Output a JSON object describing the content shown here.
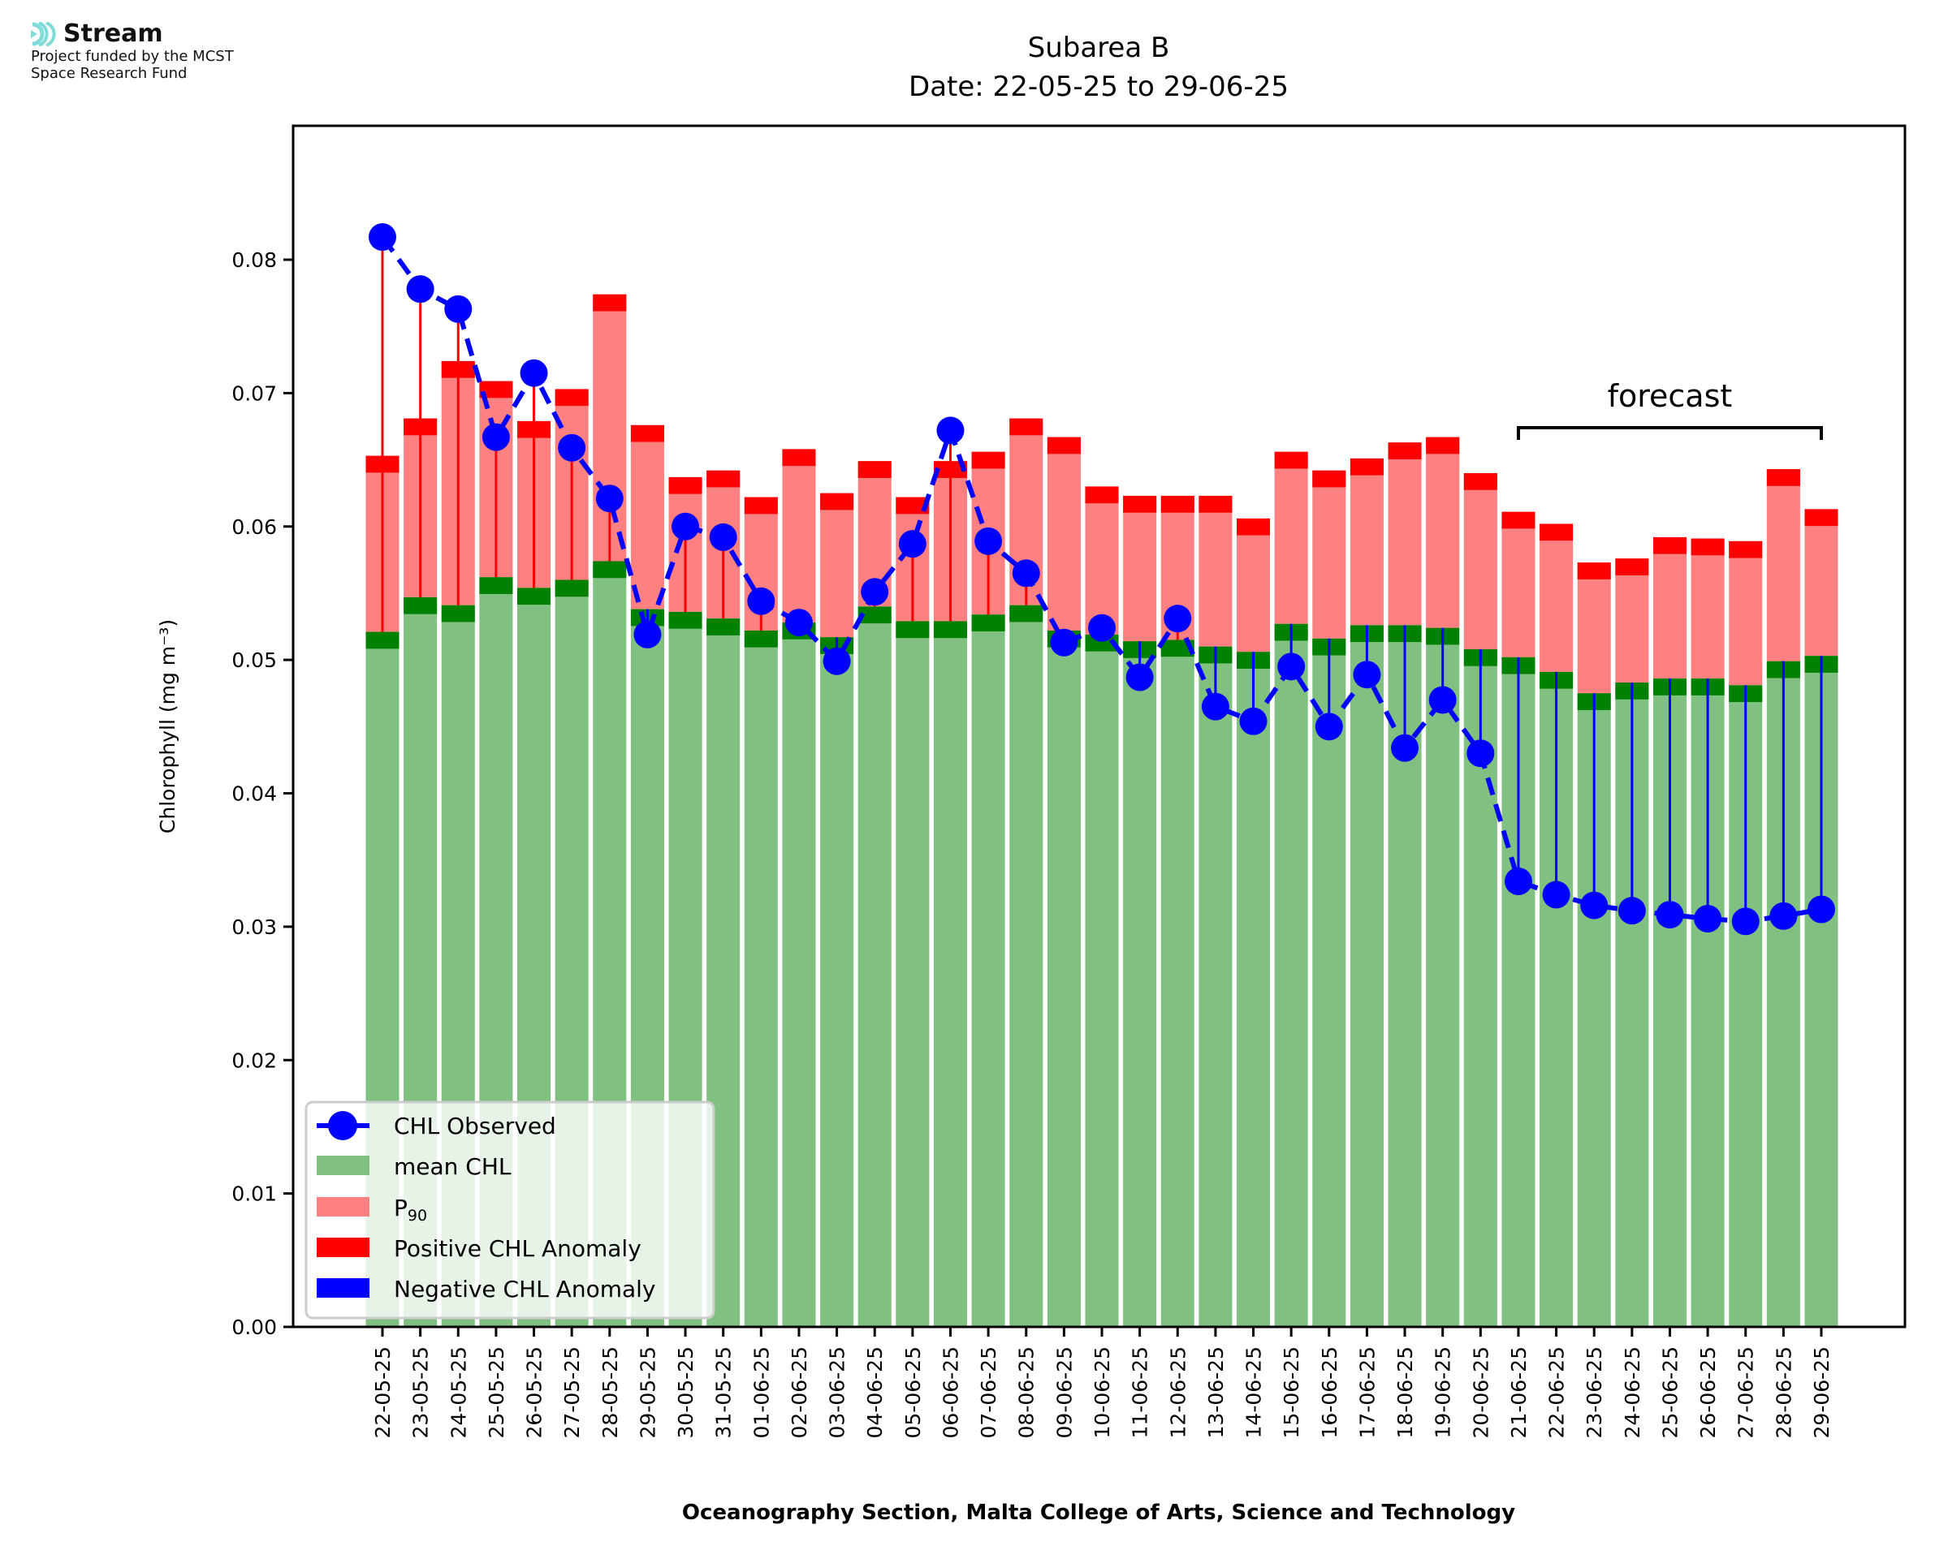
{
  "logo": {
    "name": "Stream",
    "line1": "Project funded by the MCST",
    "line2": "Space Research Fund",
    "color": "#7fdcd9"
  },
  "chart_data": {
    "type": "bar",
    "title": "Subarea B",
    "subtitle": "Date: 22-05-25 to 29-06-25",
    "xlabel": "Oceanography Section, Malta College of Arts, Science and Technology",
    "ylabel": "Chlorophyll (mg m⁻³)",
    "ylim": [
      0,
      0.09
    ],
    "yticks": [
      "0.00",
      "0.01",
      "0.02",
      "0.03",
      "0.04",
      "0.05",
      "0.06",
      "0.07",
      "0.08"
    ],
    "annotation": {
      "text": "forecast",
      "from": "21-06-25",
      "to": "29-06-25"
    },
    "legend_position": "lower-left",
    "legend": [
      "CHL Observed",
      "mean CHL",
      "P90",
      "Positive CHL Anomaly",
      "Negative CHL Anomaly"
    ],
    "categories": [
      "22-05-25",
      "23-05-25",
      "24-05-25",
      "25-05-25",
      "26-05-25",
      "27-05-25",
      "28-05-25",
      "29-05-25",
      "30-05-25",
      "31-05-25",
      "01-06-25",
      "02-06-25",
      "03-06-25",
      "04-06-25",
      "05-06-25",
      "06-06-25",
      "07-06-25",
      "08-06-25",
      "09-06-25",
      "10-06-25",
      "11-06-25",
      "12-06-25",
      "13-06-25",
      "14-06-25",
      "15-06-25",
      "16-06-25",
      "17-06-25",
      "18-06-25",
      "19-06-25",
      "20-06-25",
      "21-06-25",
      "22-06-25",
      "23-06-25",
      "24-06-25",
      "25-06-25",
      "26-06-25",
      "27-06-25",
      "28-06-25",
      "29-06-25"
    ],
    "series": [
      {
        "name": "mean CHL",
        "color": "#80c080",
        "values": [
          0.0521,
          0.0547,
          0.0541,
          0.0562,
          0.0554,
          0.056,
          0.0574,
          0.0538,
          0.0536,
          0.0531,
          0.0522,
          0.0528,
          0.0517,
          0.054,
          0.0529,
          0.0529,
          0.0534,
          0.0541,
          0.0522,
          0.0519,
          0.0514,
          0.0515,
          0.051,
          0.0506,
          0.0527,
          0.0516,
          0.0526,
          0.0526,
          0.0524,
          0.0508,
          0.0502,
          0.0491,
          0.0475,
          0.0483,
          0.0486,
          0.0486,
          0.0481,
          0.0499,
          0.0503
        ]
      },
      {
        "name": "P90",
        "color": "#ff8080",
        "values": [
          0.0653,
          0.0681,
          0.0724,
          0.0709,
          0.0679,
          0.0703,
          0.0774,
          0.0676,
          0.0637,
          0.0642,
          0.0622,
          0.0658,
          0.0625,
          0.0649,
          0.0622,
          0.0649,
          0.0656,
          0.0681,
          0.0667,
          0.063,
          0.0623,
          0.0623,
          0.0623,
          0.0606,
          0.0656,
          0.0642,
          0.0651,
          0.0663,
          0.0667,
          0.064,
          0.0611,
          0.0602,
          0.0573,
          0.0576,
          0.0592,
          0.0591,
          0.0589,
          0.0643,
          0.0613
        ]
      },
      {
        "name": "CHL Observed",
        "color": "#0000ff",
        "values": [
          0.0817,
          0.0778,
          0.0763,
          0.0667,
          0.0715,
          0.0659,
          0.0621,
          0.0519,
          0.06,
          0.0592,
          0.0544,
          0.0528,
          0.0499,
          0.0551,
          0.0587,
          0.0672,
          0.0589,
          0.0565,
          0.0513,
          0.0524,
          0.0487,
          0.0531,
          0.0465,
          0.0454,
          0.0495,
          0.045,
          0.0489,
          0.0434,
          0.047,
          0.043,
          0.0334,
          0.0324,
          0.0316,
          0.0312,
          0.0309,
          0.0306,
          0.0304,
          0.0308,
          0.0313
        ]
      }
    ],
    "colors": {
      "mean_cap": "#008000",
      "positive_anomaly": "#ff0000",
      "negative_anomaly": "#0000ff"
    }
  }
}
